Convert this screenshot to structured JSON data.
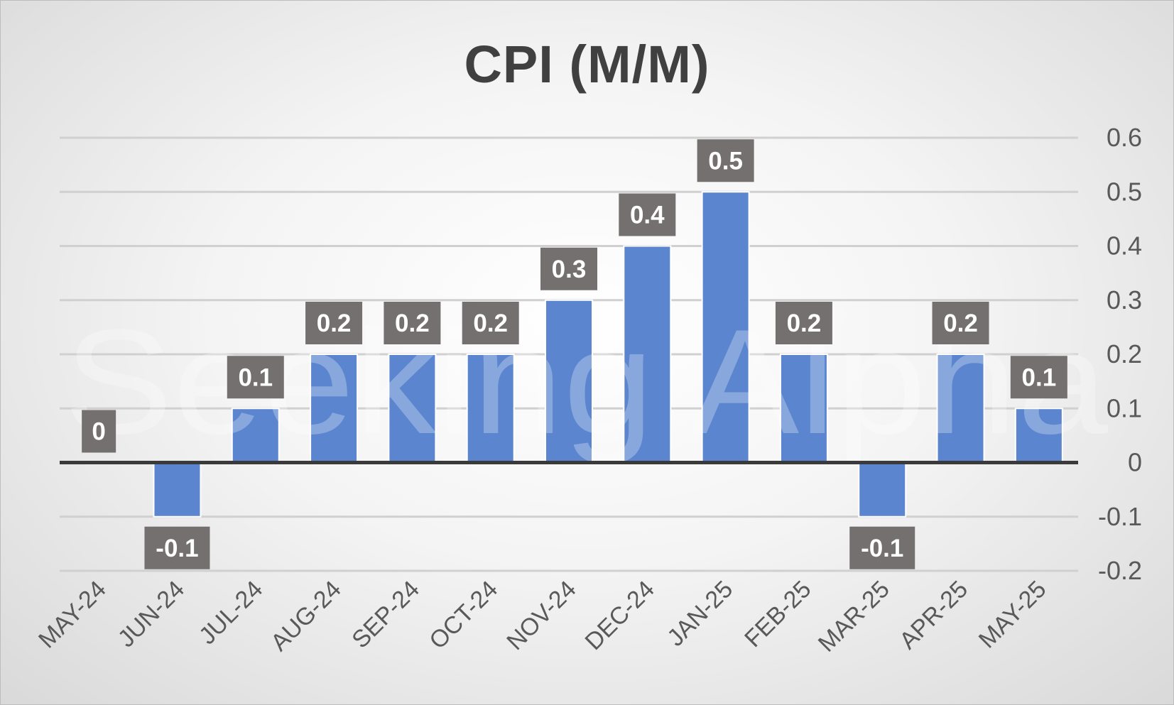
{
  "chart_data": {
    "type": "bar",
    "title": "CPI (M/M)",
    "categories": [
      "MAY-24",
      "JUN-24",
      "JUL-24",
      "AUG-24",
      "SEP-24",
      "OCT-24",
      "NOV-24",
      "DEC-24",
      "JAN-25",
      "FEB-25",
      "MAR-25",
      "APR-25",
      "MAY-25"
    ],
    "values": [
      0,
      -0.1,
      0.1,
      0.2,
      0.2,
      0.2,
      0.3,
      0.4,
      0.5,
      0.2,
      -0.1,
      0.2,
      0.1
    ],
    "data_labels": [
      "0",
      "-0.1",
      "0.1",
      "0.2",
      "0.2",
      "0.2",
      "0.3",
      "0.4",
      "0.5",
      "0.2",
      "-0.1",
      "0.2",
      "0.1"
    ],
    "yticks": [
      "0.6",
      "0.5",
      "0.4",
      "0.3",
      "0.2",
      "0.1",
      "0",
      "-0.1",
      "-0.2"
    ],
    "ylim": [
      -0.2,
      0.6
    ],
    "y_axis_position": "right",
    "grid": true,
    "legend": "none",
    "xlabel": "",
    "ylabel": "",
    "bar_color": "#5b86cf",
    "label_box_color": "#747070",
    "watermark": "Seeking Alpha"
  }
}
